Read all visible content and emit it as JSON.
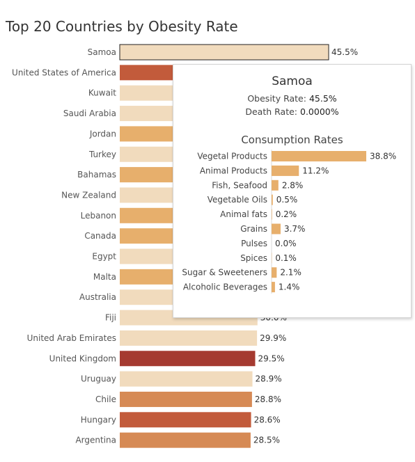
{
  "chart_data": {
    "type": "bar",
    "orientation": "horizontal",
    "title": "Top 20 Countries by Obesity Rate",
    "categories": [
      "Samoa",
      "United States of America",
      "Kuwait",
      "Saudi Arabia",
      "Jordan",
      "Turkey",
      "Bahamas",
      "New Zealand",
      "Lebanon",
      "Canada",
      "Egypt",
      "Malta",
      "Australia",
      "Fiji",
      "United Arab Emirates",
      "United Kingdom",
      "Uruguay",
      "Chile",
      "Hungary",
      "Argentina"
    ],
    "values": [
      45.5,
      37.3,
      37.0,
      35.4,
      35.5,
      32.1,
      31.6,
      30.8,
      31.3,
      31.3,
      32.0,
      31.0,
      30.4,
      30.0,
      29.9,
      29.5,
      28.9,
      28.8,
      28.6,
      28.5
    ],
    "labels": [
      "45.5%",
      "",
      "",
      "",
      "",
      "",
      "",
      "",
      "",
      "",
      "",
      "",
      "",
      "30.0%",
      "29.9%",
      "29.5%",
      "28.9%",
      "28.8%",
      "28.6%",
      "28.5%"
    ],
    "colors": [
      "#f1dbbd",
      "#c25b3b",
      "#f1dbbd",
      "#f1dbbd",
      "#e7af6c",
      "#f1dbbd",
      "#e7af6c",
      "#f1dbbd",
      "#e7af6c",
      "#e7af6c",
      "#f1dbbd",
      "#e7af6c",
      "#f1dbbd",
      "#f1dbbd",
      "#f1dbbd",
      "#a53a30",
      "#f1dbbd",
      "#d68a55",
      "#c25b3b",
      "#d68a55"
    ],
    "selected_index": 0,
    "xlim": [
      0,
      45.5
    ],
    "grid": false
  },
  "tooltip": {
    "country": "Samoa",
    "obesity_label": "Obesity Rate:",
    "obesity_value": "45.5%",
    "death_label": "Death Rate:",
    "death_value": "0.0000%",
    "consumption_title": "Consumption Rates",
    "consumption": {
      "type": "bar",
      "orientation": "horizontal",
      "categories": [
        "Vegetal Products",
        "Animal Products",
        "Fish, Seafood",
        "Vegetable Oils",
        "Animal fats",
        "Grains",
        "Pulses",
        "Spices",
        "Sugar & Sweeteners",
        "Alcoholic Beverages"
      ],
      "values": [
        38.8,
        11.2,
        2.8,
        0.5,
        0.2,
        3.7,
        0.0,
        0.1,
        2.1,
        1.4
      ],
      "labels": [
        "38.8%",
        "11.2%",
        "2.8%",
        "0.5%",
        "0.2%",
        "3.7%",
        "0.0%",
        "0.1%",
        "2.1%",
        "1.4%"
      ],
      "color": "#e7af6c",
      "xlim": [
        0,
        38.8
      ]
    }
  }
}
